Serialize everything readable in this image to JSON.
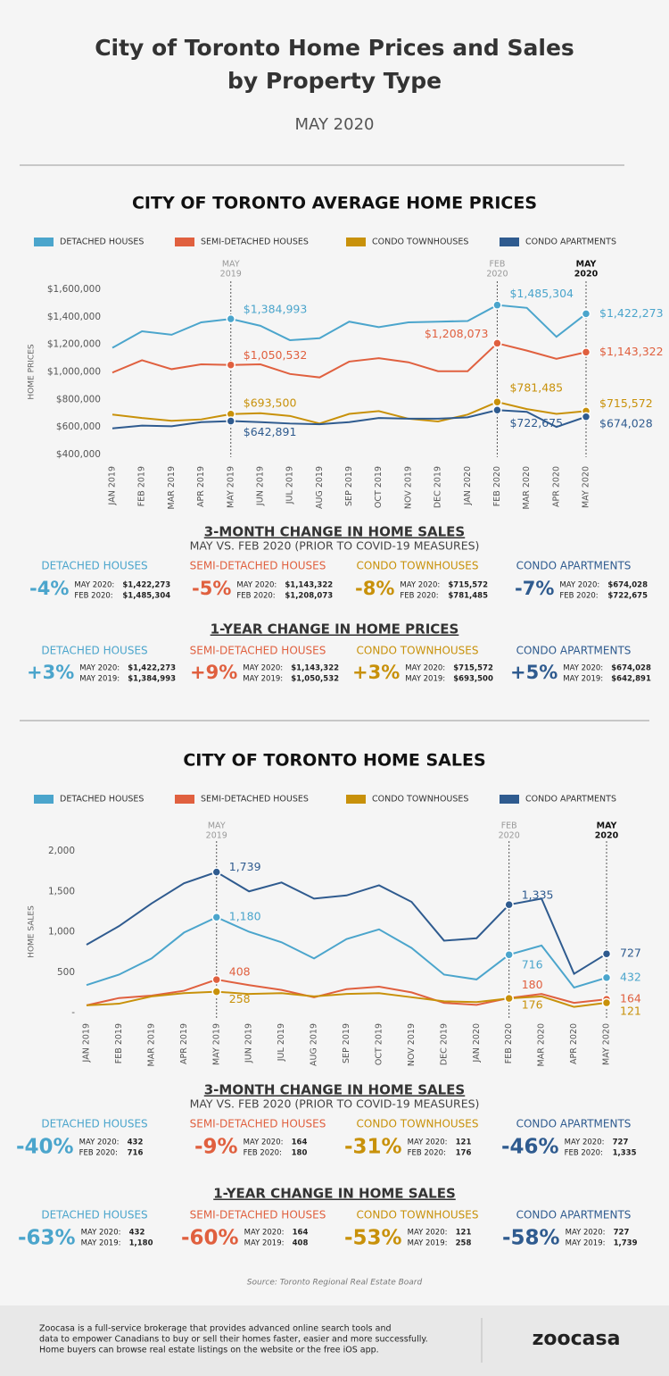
{
  "header": {
    "title_lines": [
      "City of Toronto Home Prices and Sales",
      "by Property Type"
    ],
    "date": "MAY 2020"
  },
  "chart_data": [
    {
      "type": "line",
      "title": "CITY OF TORONTO AVERAGE HOME PRICES",
      "y_label": "HOME PRICES",
      "categories": [
        "JAN 2019",
        "FEB 2019",
        "MAR 2019",
        "APR 2019",
        "MAY 2019",
        "JUN 2019",
        "JUL 2019",
        "AUG 2019",
        "SEP 2019",
        "OCT 2019",
        "NOV 2019",
        "DEC 2019",
        "JAN 2020",
        "FEB 2020",
        "MAR 2020",
        "APR 2020",
        "MAY 2020"
      ],
      "ylim": [
        400000,
        1600000
      ],
      "yticks": [
        {
          "value": 400000,
          "label": "$400,000"
        },
        {
          "value": 600000,
          "label": "$600,000"
        },
        {
          "value": 800000,
          "label": "$800,000"
        },
        {
          "value": 1000000,
          "label": "$1,000,000"
        },
        {
          "value": 1200000,
          "label": "$1,200,000"
        },
        {
          "value": 1400000,
          "label": "$1,400,000"
        },
        {
          "value": 1600000,
          "label": "$1,600,000"
        }
      ],
      "reference_lines": [
        {
          "at": "MAY 2019",
          "label": [
            "MAY",
            "2019"
          ],
          "bold": false
        },
        {
          "at": "FEB 2020",
          "label": [
            "FEB",
            "2020"
          ],
          "bold": false
        },
        {
          "at": "MAY 2020",
          "label": [
            "MAY",
            "2020"
          ],
          "bold": true
        }
      ],
      "series": [
        {
          "name": "DETACHED HOUSES",
          "color": "#4ba5cc",
          "values": [
            1175000,
            1295000,
            1270000,
            1360000,
            1384993,
            1335000,
            1230000,
            1245000,
            1365000,
            1325000,
            1360000,
            1365000,
            1370000,
            1485304,
            1465000,
            1255000,
            1422273
          ],
          "value_labels": [
            null,
            null,
            null,
            null,
            "$1,384,993",
            null,
            null,
            null,
            null,
            null,
            null,
            null,
            null,
            "$1,485,304",
            null,
            null,
            "$1,422,273"
          ]
        },
        {
          "name": "SEMI-DETACHED HOUSES",
          "color": "#e0603f",
          "values": [
            995000,
            1085000,
            1020000,
            1055000,
            1050532,
            1055000,
            985000,
            960000,
            1075000,
            1100000,
            1070000,
            1005000,
            1005000,
            1208073,
            1155000,
            1095000,
            1143322
          ],
          "value_labels": [
            null,
            null,
            null,
            null,
            "$1,050,532",
            null,
            null,
            null,
            null,
            null,
            null,
            null,
            null,
            "$1,208,073",
            null,
            null,
            "$1,143,322"
          ]
        },
        {
          "name": "CONDO TOWNHOUSES",
          "color": "#c8910a",
          "values": [
            690000,
            665000,
            645000,
            655000,
            693500,
            700000,
            680000,
            625000,
            695000,
            715000,
            660000,
            640000,
            690000,
            781485,
            730000,
            695000,
            715572
          ],
          "value_labels": [
            null,
            null,
            null,
            null,
            "$693,500",
            null,
            null,
            null,
            null,
            null,
            null,
            null,
            null,
            "$781,485",
            null,
            null,
            "$715,572"
          ]
        },
        {
          "name": "CONDO APARTMENTS",
          "color": "#2f5b8f",
          "values": [
            590000,
            610000,
            605000,
            635000,
            642891,
            635000,
            625000,
            620000,
            635000,
            665000,
            660000,
            660000,
            670000,
            722675,
            710000,
            600000,
            674028
          ],
          "value_labels": [
            null,
            null,
            null,
            null,
            "$642,891",
            null,
            null,
            null,
            null,
            null,
            null,
            null,
            null,
            "$722,675",
            null,
            null,
            "$674,028"
          ]
        }
      ]
    },
    {
      "type": "line",
      "title": "CITY OF TORONTO HOME SALES",
      "y_label": "HOME SALES",
      "categories": [
        "JAN 2019",
        "FEB 2019",
        "MAR 2019",
        "APR 2019",
        "MAY 2019",
        "JUN 2019",
        "JUL 2019",
        "AUG 2019",
        "SEP 2019",
        "OCT 2019",
        "NOV 2019",
        "DEC 2019",
        "JAN 2020",
        "FEB 2020",
        "MAR 2020",
        "APR 2020",
        "MAY 2020"
      ],
      "ylim": [
        0,
        2000
      ],
      "yticks": [
        {
          "value": 0,
          "label": "-"
        },
        500,
        {
          "value": 1000,
          "label": "1,000"
        },
        {
          "value": 1500,
          "label": "1,500"
        },
        {
          "value": 2000,
          "label": "2,000"
        }
      ],
      "reference_lines": [
        {
          "at": "MAY 2019",
          "label": [
            "MAY",
            "2019"
          ],
          "bold": false
        },
        {
          "at": "FEB 2020",
          "label": [
            "FEB",
            "2020"
          ],
          "bold": false
        },
        {
          "at": "MAY 2020",
          "label": [
            "MAY",
            "2020"
          ],
          "bold": true
        }
      ],
      "series": [
        {
          "name": "DETACHED HOUSES",
          "color": "#4ba5cc",
          "values": [
            340,
            470,
            670,
            990,
            1180,
            1000,
            870,
            670,
            910,
            1030,
            800,
            470,
            410,
            716,
            830,
            310,
            432
          ],
          "value_labels": [
            null,
            null,
            null,
            null,
            "1,180",
            null,
            null,
            null,
            null,
            null,
            null,
            null,
            null,
            "716",
            null,
            null,
            "432"
          ]
        },
        {
          "name": "SEMI-DETACHED HOUSES",
          "color": "#e0603f",
          "values": [
            90,
            180,
            210,
            270,
            408,
            340,
            280,
            190,
            290,
            320,
            250,
            120,
            95,
            180,
            230,
            120,
            164
          ],
          "value_labels": [
            null,
            null,
            null,
            null,
            "408",
            null,
            null,
            null,
            null,
            null,
            null,
            null,
            null,
            "180",
            null,
            null,
            "164"
          ]
        },
        {
          "name": "CONDO TOWNHOUSES",
          "color": "#c8910a",
          "values": [
            90,
            110,
            200,
            240,
            258,
            230,
            240,
            200,
            230,
            240,
            190,
            140,
            130,
            176,
            200,
            70,
            121
          ],
          "value_labels": [
            null,
            null,
            null,
            null,
            "258",
            null,
            null,
            null,
            null,
            null,
            null,
            null,
            null,
            "176",
            null,
            null,
            "121"
          ]
        },
        {
          "name": "CONDO APARTMENTS",
          "color": "#2f5b8f",
          "values": [
            840,
            1070,
            1350,
            1600,
            1739,
            1500,
            1610,
            1410,
            1450,
            1575,
            1370,
            890,
            920,
            1335,
            1410,
            480,
            727
          ],
          "value_labels": [
            null,
            null,
            null,
            null,
            "1,739",
            null,
            null,
            null,
            null,
            null,
            null,
            null,
            null,
            "1,335",
            null,
            null,
            "727"
          ]
        }
      ]
    }
  ],
  "panels": [
    {
      "title": "3-MONTH CHANGE IN HOME SALES",
      "subtitle": "MAY VS. FEB 2020 (PRIOR TO COVID-19 MEASURES)",
      "items": [
        {
          "name": "DETACHED HOUSES",
          "change": "-4%",
          "rows": [
            [
              "MAY 2020:",
              "$1,422,273"
            ],
            [
              "FEB 2020:",
              "$1,485,304"
            ]
          ]
        },
        {
          "name": "SEMI-DETACHED HOUSES",
          "change": "-5%",
          "rows": [
            [
              "MAY 2020:",
              "$1,143,322"
            ],
            [
              "FEB 2020:",
              "$1,208,073"
            ]
          ]
        },
        {
          "name": "CONDO TOWNHOUSES",
          "change": "-8%",
          "rows": [
            [
              "MAY 2020:",
              "$715,572"
            ],
            [
              "FEB 2020:",
              "$781,485"
            ]
          ]
        },
        {
          "name": "CONDO APARTMENTS",
          "change": "-7%",
          "rows": [
            [
              "MAY 2020:",
              "$674,028"
            ],
            [
              "FEB 2020:",
              "$722,675"
            ]
          ]
        }
      ]
    },
    {
      "title": "1-YEAR CHANGE IN HOME PRICES",
      "items": [
        {
          "name": "DETACHED HOUSES",
          "change": "+3%",
          "rows": [
            [
              "MAY 2020:",
              "$1,422,273"
            ],
            [
              "MAY 2019:",
              "$1,384,993"
            ]
          ]
        },
        {
          "name": "SEMI-DETACHED HOUSES",
          "change": "+9%",
          "rows": [
            [
              "MAY 2020:",
              "$1,143,322"
            ],
            [
              "MAY 2019:",
              "$1,050,532"
            ]
          ]
        },
        {
          "name": "CONDO TOWNHOUSES",
          "change": "+3%",
          "rows": [
            [
              "MAY 2020:",
              "$715,572"
            ],
            [
              "MAY 2019:",
              "$693,500"
            ]
          ]
        },
        {
          "name": "CONDO APARTMENTS",
          "change": "+5%",
          "rows": [
            [
              "MAY 2020:",
              "$674,028"
            ],
            [
              "MAY 2019:",
              "$642,891"
            ]
          ]
        }
      ]
    },
    {
      "title": "3-MONTH CHANGE IN HOME SALES",
      "subtitle": "MAY VS. FEB 2020 (PRIOR TO COVID-19 MEASURES)",
      "items": [
        {
          "name": "DETACHED HOUSES",
          "change": "-40%",
          "rows": [
            [
              "MAY 2020:",
              "432"
            ],
            [
              "FEB 2020:",
              "716"
            ]
          ]
        },
        {
          "name": "SEMI-DETACHED HOUSES",
          "change": "-9%",
          "rows": [
            [
              "MAY 2020:",
              "164"
            ],
            [
              "FEB 2020:",
              "180"
            ]
          ]
        },
        {
          "name": "CONDO TOWNHOUSES",
          "change": "-31%",
          "rows": [
            [
              "MAY 2020:",
              "121"
            ],
            [
              "FEB 2020:",
              "176"
            ]
          ]
        },
        {
          "name": "CONDO APARTMENTS",
          "change": "-46%",
          "rows": [
            [
              "MAY 2020:",
              "727"
            ],
            [
              "FEB 2020:",
              "1,335"
            ]
          ]
        }
      ]
    },
    {
      "title": "1-YEAR CHANGE IN HOME SALES",
      "items": [
        {
          "name": "DETACHED HOUSES",
          "change": "-63%",
          "rows": [
            [
              "MAY 2020:",
              "432"
            ],
            [
              "MAY 2019:",
              "1,180"
            ]
          ]
        },
        {
          "name": "SEMI-DETACHED HOUSES",
          "change": "-60%",
          "rows": [
            [
              "MAY 2020:",
              "164"
            ],
            [
              "MAY 2019:",
              "408"
            ]
          ]
        },
        {
          "name": "CONDO TOWNHOUSES",
          "change": "-53%",
          "rows": [
            [
              "MAY 2020:",
              "121"
            ],
            [
              "MAY 2019:",
              "258"
            ]
          ]
        },
        {
          "name": "CONDO APARTMENTS",
          "change": "-58%",
          "rows": [
            [
              "MAY 2020:",
              "727"
            ],
            [
              "MAY 2019:",
              "1,739"
            ]
          ]
        }
      ]
    }
  ],
  "source": "Source: Toronto Regional Real Estate Board",
  "footer": {
    "text_lines": [
      "Zoocasa is a full-service brokerage that provides advanced online search tools and",
      "data to empower Canadians to buy or sell their homes faster, easier and more successfully.",
      "Home buyers can browse real estate listings on the website or the free iOS app."
    ],
    "logo": "zoocasa"
  }
}
